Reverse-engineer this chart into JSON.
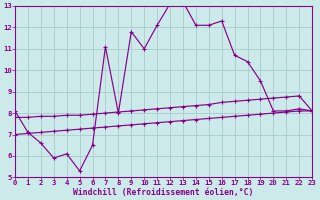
{
  "xlabel": "Windchill (Refroidissement éolien,°C)",
  "bg_color": "#cceaea",
  "grid_color": "#aacccc",
  "line_color": "#880088",
  "xlim": [
    0,
    23
  ],
  "ylim": [
    5,
    13
  ],
  "xticks": [
    0,
    1,
    2,
    3,
    4,
    5,
    6,
    7,
    8,
    9,
    10,
    11,
    12,
    13,
    14,
    15,
    16,
    17,
    18,
    19,
    20,
    21,
    22,
    23
  ],
  "yticks": [
    5,
    6,
    7,
    8,
    9,
    10,
    11,
    12,
    13
  ],
  "line1_y": [
    8.1,
    7.1,
    6.6,
    5.9,
    6.1,
    5.3,
    6.5,
    11.1,
    8.0,
    11.8,
    11.0,
    12.1,
    13.1,
    13.2,
    12.1,
    12.1,
    12.3,
    10.7,
    10.4,
    9.5,
    8.1,
    8.1,
    8.2,
    8.1
  ],
  "line2_y": [
    7.8,
    7.8,
    7.85,
    7.85,
    7.9,
    7.9,
    7.95,
    8.0,
    8.05,
    8.1,
    8.15,
    8.2,
    8.25,
    8.3,
    8.35,
    8.4,
    8.5,
    8.55,
    8.6,
    8.65,
    8.7,
    8.75,
    8.8,
    8.1
  ],
  "line3_y": [
    7.0,
    7.05,
    7.1,
    7.15,
    7.2,
    7.25,
    7.3,
    7.35,
    7.4,
    7.45,
    7.5,
    7.55,
    7.6,
    7.65,
    7.7,
    7.75,
    7.8,
    7.85,
    7.9,
    7.95,
    8.0,
    8.05,
    8.1,
    8.1
  ]
}
